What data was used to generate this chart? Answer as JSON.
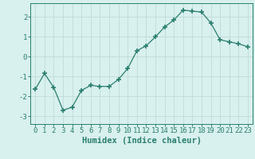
{
  "x": [
    0,
    1,
    2,
    3,
    4,
    5,
    6,
    7,
    8,
    9,
    10,
    11,
    12,
    13,
    14,
    15,
    16,
    17,
    18,
    19,
    20,
    21,
    22,
    23
  ],
  "y": [
    -1.65,
    -0.85,
    -1.55,
    -2.7,
    -2.55,
    -1.7,
    -1.45,
    -1.5,
    -1.5,
    -1.15,
    -0.6,
    0.3,
    0.55,
    1.0,
    1.5,
    1.85,
    2.35,
    2.3,
    2.25,
    1.7,
    0.85,
    0.75,
    0.65,
    0.5
  ],
  "line_color": "#2a7f6f",
  "marker": "+",
  "marker_size": 4.0,
  "bg_color": "#d8f0ee",
  "grid_color": "#c0dbd8",
  "xlabel": "Humidex (Indice chaleur)",
  "xlim": [
    -0.5,
    23.5
  ],
  "ylim": [
    -3.4,
    2.7
  ],
  "yticks": [
    -3,
    -2,
    -1,
    0,
    1,
    2
  ],
  "xticks": [
    0,
    1,
    2,
    3,
    4,
    5,
    6,
    7,
    8,
    9,
    10,
    11,
    12,
    13,
    14,
    15,
    16,
    17,
    18,
    19,
    20,
    21,
    22,
    23
  ],
  "tick_fontsize": 6.5,
  "xlabel_fontsize": 7.5
}
